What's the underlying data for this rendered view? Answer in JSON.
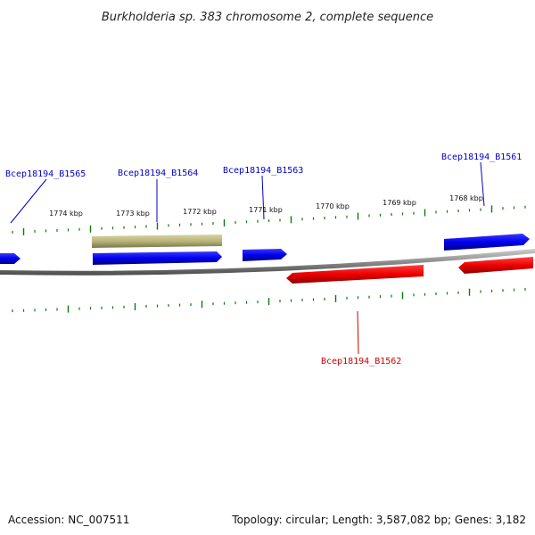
{
  "title": "Burkholderia sp. 383 chromosome 2, complete sequence",
  "tick_labels": [
    "1774 kbp",
    "1773 kbp",
    "1772 kbp",
    "1771 kbp",
    "1770 kbp",
    "1769 kbp",
    "1768 kbp"
  ],
  "genes": [
    {
      "id": "Bcep18194_B1565",
      "strand": "forward",
      "color": "#0000cc"
    },
    {
      "id": "Bcep18194_B1564",
      "strand": "forward",
      "color": "#0000cc"
    },
    {
      "id": "Bcep18194_B1563",
      "strand": "forward",
      "color": "#0000cc"
    },
    {
      "id": "Bcep18194_B1562",
      "strand": "reverse",
      "color": "#cc0000"
    },
    {
      "id": "Bcep18194_B1561",
      "strand": "forward",
      "color": "#0000cc"
    }
  ],
  "colors": {
    "forward_gene": "#0000ee",
    "reverse_gene": "#ee0000",
    "feature_bar": "#b8b47a",
    "backbone": "#888888",
    "ticks": "#0a7a0a"
  },
  "footer": {
    "accession": "Accession: NC_007511",
    "summary": "Topology: circular; Length: 3,587,082 bp; Genes: 3,182"
  }
}
